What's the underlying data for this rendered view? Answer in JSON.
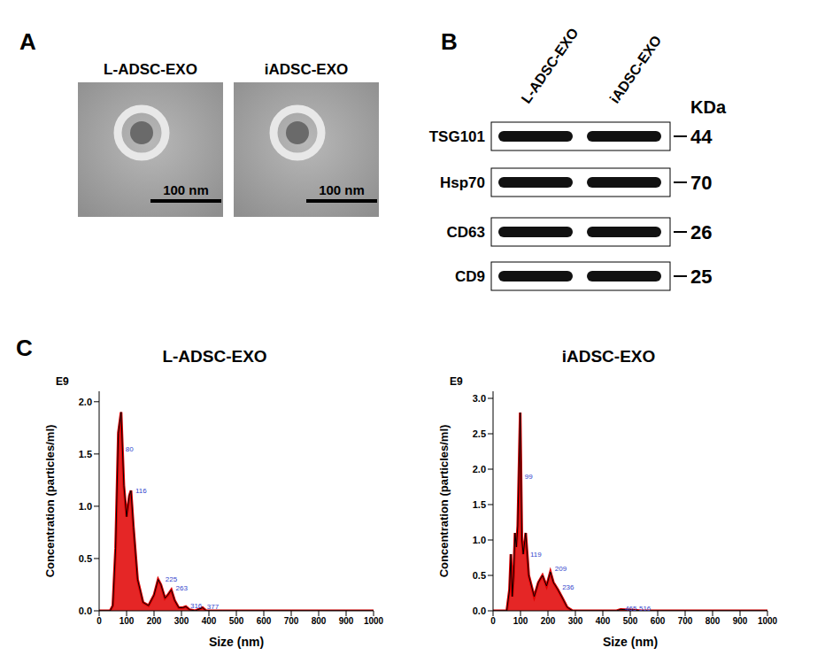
{
  "panel_a": {
    "letter": "A",
    "images": [
      {
        "title": "L-ADSC-EXO",
        "scale_bar": "100 nm"
      },
      {
        "title": "iADSC-EXO",
        "scale_bar": "100 nm"
      }
    ]
  },
  "panel_b": {
    "letter": "B",
    "lanes": [
      "L-ADSC-EXO",
      "iADSC-EXO"
    ],
    "unit": "KDa",
    "rows": [
      {
        "label": "TSG101",
        "kda": 44
      },
      {
        "label": "Hsp70",
        "kda": 70
      },
      {
        "label": "CD63",
        "kda": 26
      },
      {
        "label": "CD9",
        "kda": 25
      }
    ]
  },
  "panel_c": {
    "letter": "C"
  },
  "chart_data": [
    {
      "type": "area",
      "title": "L-ADSC-EXO",
      "y_unit_label": "E9",
      "x_label": "Size (nm)",
      "y_label": "Concentration (particles/ml)",
      "x": [
        0,
        40,
        50,
        60,
        70,
        80,
        90,
        100,
        110,
        116,
        125,
        140,
        160,
        180,
        200,
        215,
        225,
        240,
        250,
        263,
        275,
        290,
        305,
        316,
        330,
        350,
        377,
        390,
        450,
        1000
      ],
      "values": [
        0,
        0,
        0.05,
        0.6,
        1.7,
        1.9,
        1.2,
        0.9,
        1.1,
        1.15,
        0.8,
        0.3,
        0.08,
        0.05,
        0.15,
        0.3,
        0.25,
        0.12,
        0.15,
        0.2,
        0.1,
        0.03,
        0.03,
        0.04,
        0.01,
        0,
        0.03,
        0,
        0,
        0
      ],
      "color": "#e00000",
      "xlim": [
        0,
        1000
      ],
      "xticks": [
        0,
        100,
        200,
        300,
        400,
        500,
        600,
        700,
        800,
        900,
        1000
      ],
      "ylim": [
        0,
        2.1
      ],
      "yticks": [
        {
          "value": 0,
          "label": "0.0"
        },
        {
          "value": 0.5,
          "label": "0.5"
        },
        {
          "value": 1,
          "label": "1.0"
        },
        {
          "value": 1.5,
          "label": "1.5"
        },
        {
          "value": 2,
          "label": "2.0"
        }
      ],
      "annotations": [
        {
          "x": 80,
          "y": 1.55,
          "label": "80"
        },
        {
          "x": 116,
          "y": 1.15,
          "label": "116"
        },
        {
          "x": 225,
          "y": 0.3,
          "label": "225"
        },
        {
          "x": 263,
          "y": 0.22,
          "label": "263"
        },
        {
          "x": 316,
          "y": 0.05,
          "label": "316"
        },
        {
          "x": 377,
          "y": 0.04,
          "label": "377"
        }
      ]
    },
    {
      "type": "area",
      "title": "iADSC-EXO",
      "y_unit_label": "E9",
      "x_label": "Size (nm)",
      "y_label": "Concentration (particles/ml)",
      "x": [
        0,
        50,
        60,
        65,
        70,
        75,
        80,
        85,
        90,
        99,
        105,
        110,
        119,
        130,
        150,
        165,
        180,
        195,
        209,
        220,
        236,
        250,
        270,
        290,
        450,
        465,
        516,
        540,
        1000
      ],
      "values": [
        0,
        0,
        0.3,
        0.8,
        0.2,
        0.5,
        1.1,
        0.9,
        1.2,
        2.8,
        1.0,
        0.8,
        1.1,
        0.5,
        0.2,
        0.4,
        0.5,
        0.35,
        0.55,
        0.4,
        0.3,
        0.2,
        0.05,
        0,
        0,
        0.02,
        0.01,
        0,
        0
      ],
      "color": "#e00000",
      "xlim": [
        0,
        1000
      ],
      "xticks": [
        0,
        100,
        200,
        300,
        400,
        500,
        600,
        700,
        800,
        900,
        1000
      ],
      "ylim": [
        0,
        3.1
      ],
      "yticks": [
        {
          "value": 0,
          "label": "0.0"
        },
        {
          "value": 0.5,
          "label": "0.5"
        },
        {
          "value": 1,
          "label": "1.0"
        },
        {
          "value": 1.5,
          "label": "1.5"
        },
        {
          "value": 2,
          "label": "2.0"
        },
        {
          "value": 2.5,
          "label": "2.5"
        },
        {
          "value": 3,
          "label": "3.0"
        }
      ],
      "annotations": [
        {
          "x": 99,
          "y": 1.9,
          "label": "99"
        },
        {
          "x": 119,
          "y": 0.8,
          "label": "119"
        },
        {
          "x": 209,
          "y": 0.6,
          "label": "209"
        },
        {
          "x": 236,
          "y": 0.33,
          "label": "236"
        },
        {
          "x": 465,
          "y": 0.03,
          "label": "465"
        },
        {
          "x": 516,
          "y": 0.03,
          "label": "516"
        }
      ]
    }
  ]
}
